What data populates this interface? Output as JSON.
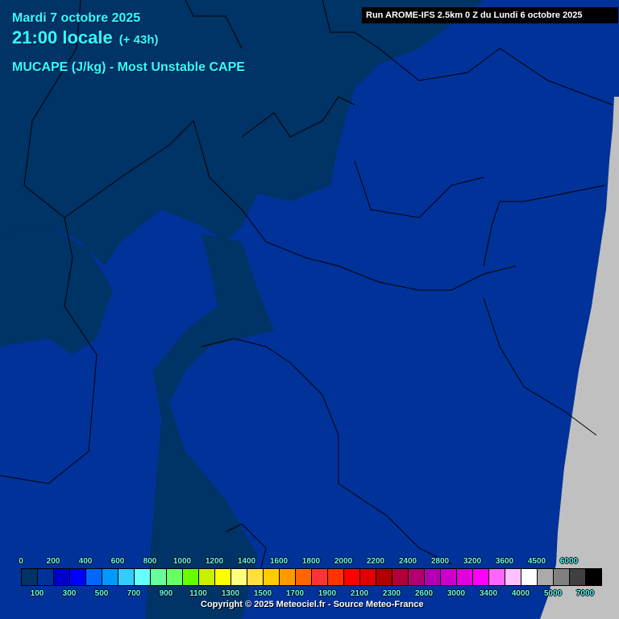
{
  "header": {
    "date": "Mardi 7 octobre 2025",
    "time": "21:00 locale",
    "lead": "(+ 43h)",
    "parameter": "MUCAPE (J/kg) - Most Unstable CAPE",
    "run": "Run AROME-IFS 2.5km 0 Z du Lundi 6 octobre 2025"
  },
  "colors": {
    "text": "#33ffff",
    "cape_0": "#003366",
    "cape_100": "#00329a",
    "outside_domain": "#c0c0c0",
    "borders": "#000000"
  },
  "legend": {
    "unit": "J/kg",
    "labels_top": [
      "0",
      "200",
      "400",
      "600",
      "800",
      "1000",
      "1200",
      "1400",
      "1600",
      "1800",
      "2000",
      "2200",
      "2400",
      "2800",
      "3200",
      "3600",
      "4500",
      "6000"
    ],
    "labels_bottom": [
      "100",
      "300",
      "500",
      "700",
      "900",
      "1100",
      "1300",
      "1500",
      "1700",
      "1900",
      "2100",
      "2300",
      "2600",
      "3000",
      "3400",
      "4000",
      "5000",
      "7000"
    ],
    "colors": [
      "#003366",
      "#00329a",
      "#0000cc",
      "#0000ff",
      "#0066ff",
      "#0099ff",
      "#33ccff",
      "#66ffff",
      "#66ff99",
      "#66ff66",
      "#66ff00",
      "#c8f000",
      "#ffff00",
      "#ffff80",
      "#ffe040",
      "#ffcc00",
      "#ff9900",
      "#ff6600",
      "#ff3333",
      "#ff3300",
      "#ff0000",
      "#e00000",
      "#b00000",
      "#b0003a",
      "#b00070",
      "#b000b0",
      "#cc00cc",
      "#e000e0",
      "#ff00ff",
      "#ff66ff",
      "#ffc0ff",
      "#ffffff",
      "#aaaaaa",
      "#808080",
      "#404040",
      "#000000"
    ]
  },
  "footer": {
    "copyright": "Copyright © 2025 Meteociel.fr - Source Meteo-France"
  }
}
